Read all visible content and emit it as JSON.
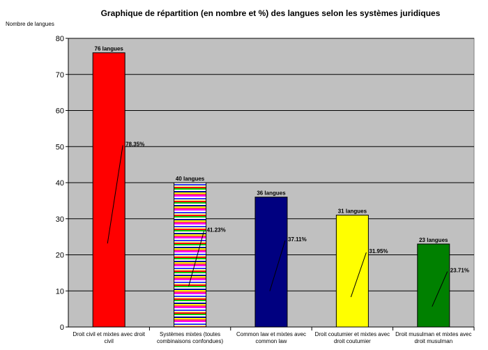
{
  "chart_data": {
    "type": "bar",
    "title": "Graphique de répartition (en nombre et %) des  langues selon les systèmes juridiques",
    "ylabel": "Nombre de langues",
    "xlabel": "",
    "ylim": [
      0,
      80
    ],
    "yticks": [
      0,
      10,
      20,
      30,
      40,
      50,
      60,
      70,
      80
    ],
    "grid": true,
    "plot_background": "#c0c0c0",
    "categories": [
      [
        "Droit civil et mixtes avec droit",
        "civil"
      ],
      [
        "Systèmes mixtes (toutes",
        "combinaisons confondues)"
      ],
      [
        "Common law et mixtes avec",
        "common law"
      ],
      [
        "Droit coutumier et mixtes avec",
        "droit coutumier"
      ],
      [
        "Droit musulman et mixtes avec",
        "droit musulman"
      ]
    ],
    "values": [
      76,
      40,
      36,
      31,
      23
    ],
    "value_labels": [
      "76 langues",
      "40 langues",
      "36 langues",
      "31 langues",
      "23 langues"
    ],
    "percent_labels": [
      "78.35%",
      "41.23%",
      "37.11%",
      "31.95%",
      "23.71%"
    ],
    "colors": [
      "#ff0000",
      "striped",
      "#000080",
      "#ffff00",
      "#008000"
    ]
  }
}
